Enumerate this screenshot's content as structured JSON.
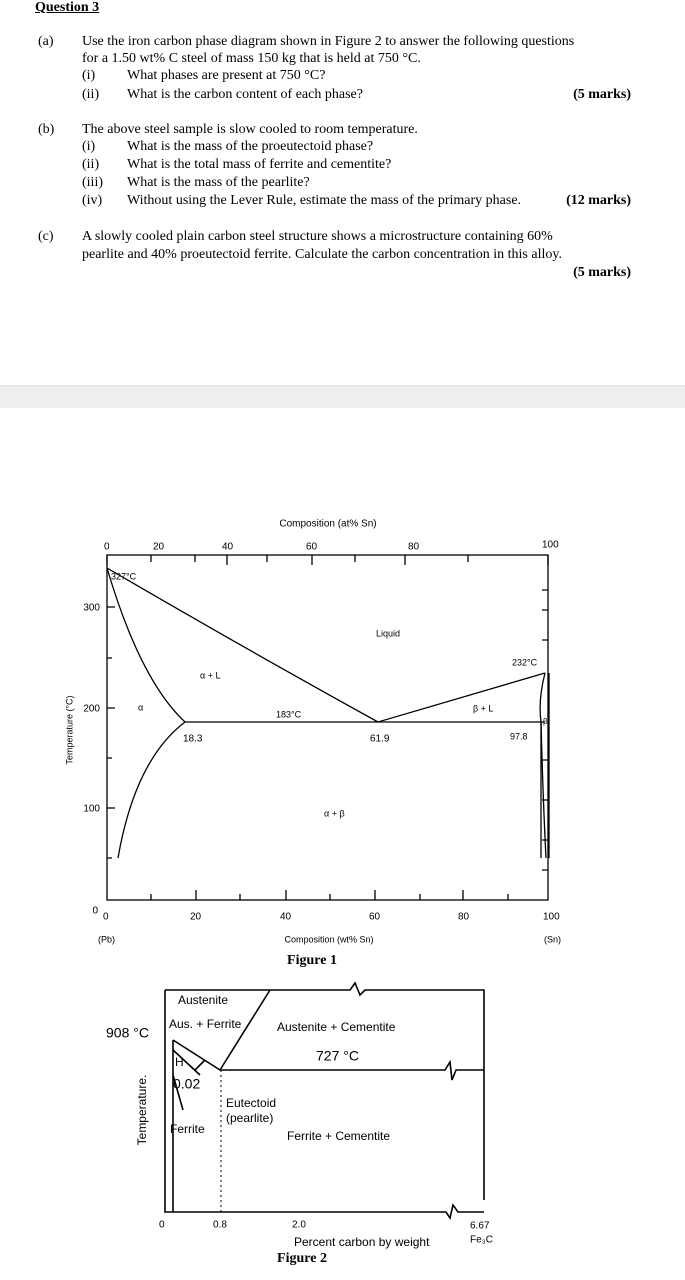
{
  "question": {
    "title": "Question 3",
    "parts": [
      {
        "label": "(a)",
        "lines": [
          "Use the iron carbon phase diagram shown in Figure 2 to answer the following questions",
          "for a 1.50 wt% C steel of mass 150 kg that is held at 750 °C."
        ],
        "items": [
          {
            "num": "(i)",
            "text": "What phases are present at 750 °C?"
          },
          {
            "num": "(ii)",
            "text": "What is the carbon content of each phase?",
            "marks": "(5 marks)"
          }
        ]
      },
      {
        "label": "(b)",
        "lines": [
          "The above steel sample is slow cooled to room temperature."
        ],
        "items": [
          {
            "num": "(i)",
            "text": "What is the mass of the proeutectoid phase?"
          },
          {
            "num": "(ii)",
            "text": "What is the total mass of ferrite and cementite?"
          },
          {
            "num": "(iii)",
            "text": "What is the mass of the pearlite?"
          },
          {
            "num": "(iv)",
            "text": "Without using the Lever Rule, estimate the mass of the primary phase.",
            "marks": "(12 marks)"
          }
        ]
      },
      {
        "label": "(c)",
        "lines": [
          "A slowly cooled plain carbon steel structure shows a microstructure containing 60%",
          "pearlite and 40% proeutectoid ferrite.  Calculate the carbon concentration in this alloy."
        ],
        "marks": "(5 marks)"
      }
    ]
  },
  "figure1": {
    "caption": "Figure 1",
    "top_axis_title": "Composition (at% Sn)",
    "top_ticks": [
      "0",
      "20",
      "40",
      "60",
      "80",
      "100"
    ],
    "y_axis_title": "Temperature (°C)",
    "y_ticks": [
      "300",
      "200",
      "100",
      "0"
    ],
    "bottom_axis_title": "Composition (wt% Sn)",
    "bottom_ticks": [
      "0",
      "20",
      "40",
      "60",
      "80",
      "100"
    ],
    "left_end": "(Pb)",
    "right_end": "(Sn)",
    "labels": {
      "pb_melt": "327°C",
      "liquid": "Liquid",
      "sn_melt": "232°C",
      "alpha_l": "α + L",
      "beta_l": "β + L",
      "eutectic": "183°C",
      "alpha_comp": "18.3",
      "eut_comp": "61.9",
      "beta_comp": "97.8",
      "alpha": "α",
      "beta": "β",
      "alpha_beta": "α + β"
    }
  },
  "figure2": {
    "caption": "Figure 2",
    "labels": {
      "austenite": "Austenite",
      "aus_ferrite": "Aus. + Ferrite",
      "t908": "908 °C",
      "aus_cem": "Austenite + Cementite",
      "t727": "727 °C",
      "h": "H",
      "c002": "0.02",
      "eutectoid": "Eutectoid",
      "pearlite": "(pearlite)",
      "ferrite": "Ferrite",
      "fer_cem": "Ferrite + Cementite",
      "y_title": "Temperature.",
      "x0": "0",
      "x08": "0.8",
      "x20": "2.0",
      "x_title": "Percent carbon by weight",
      "x667": "6.67",
      "fe3c": "Fe₃C"
    }
  }
}
